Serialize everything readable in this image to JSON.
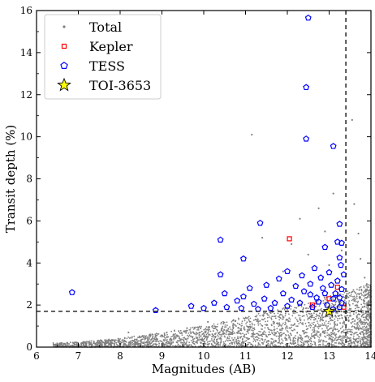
{
  "chart_data": {
    "type": "scatter",
    "title": "",
    "xlabel": "Magnitudes (AB)",
    "ylabel": "Transit depth (%)",
    "xlim": [
      6,
      14
    ],
    "ylim": [
      0,
      16
    ],
    "x_ticks": [
      6,
      7,
      8,
      9,
      10,
      11,
      12,
      13,
      14
    ],
    "y_ticks": [
      0,
      2,
      4,
      6,
      8,
      10,
      12,
      14,
      16
    ],
    "grid": false,
    "legend_position": "top-left",
    "reference_lines": [
      {
        "orientation": "horizontal",
        "value": 1.7,
        "style": "dashed"
      },
      {
        "orientation": "vertical",
        "value": 13.4,
        "style": "dashed"
      }
    ],
    "series": [
      {
        "name": "Total",
        "marker": "dot",
        "color": "#808080",
        "points": [
          [
            8.2,
            0.7
          ],
          [
            8.6,
            0.4
          ],
          [
            9.1,
            0.2
          ],
          [
            9.6,
            0.9
          ],
          [
            10.1,
            1.2
          ],
          [
            10.6,
            0.6
          ],
          [
            11.15,
            10.1
          ],
          [
            11.4,
            5.2
          ],
          [
            12.3,
            6.1
          ],
          [
            12.75,
            6.6
          ],
          [
            12.9,
            5.5
          ],
          [
            13.1,
            7.3
          ],
          [
            13.3,
            4.6
          ],
          [
            13.55,
            10.8
          ],
          [
            13.6,
            6.8
          ],
          [
            13.7,
            5.4
          ],
          [
            13.75,
            4.2
          ],
          [
            13.85,
            3.3
          ],
          [
            13.9,
            3.0
          ],
          [
            13.95,
            2.6
          ],
          [
            13.6,
            2.2
          ],
          [
            13.8,
            1.9
          ],
          [
            12.5,
            4.4
          ],
          [
            11.9,
            3.6
          ],
          [
            12.1,
            4.9
          ],
          [
            13.0,
            3.9
          ],
          [
            7.0,
            0.1
          ],
          [
            6.6,
            0.05
          ],
          [
            7.5,
            0.2
          ],
          [
            8.0,
            0.15
          ]
        ]
      },
      {
        "name": "Kepler",
        "marker": "square",
        "color": "#ff0000",
        "points": [
          [
            12.05,
            5.15
          ],
          [
            13.2,
            2.85
          ],
          [
            13.0,
            2.3
          ],
          [
            12.6,
            2.0
          ],
          [
            13.35,
            1.9
          ]
        ]
      },
      {
        "name": "TESS",
        "marker": "pentagon",
        "color": "#0000ff",
        "points": [
          [
            12.5,
            15.65
          ],
          [
            12.45,
            12.35
          ],
          [
            12.45,
            9.9
          ],
          [
            13.1,
            9.55
          ],
          [
            11.35,
            5.9
          ],
          [
            13.25,
            5.85
          ],
          [
            10.4,
            5.1
          ],
          [
            10.95,
            4.2
          ],
          [
            12.9,
            4.75
          ],
          [
            13.2,
            5.0
          ],
          [
            13.3,
            4.95
          ],
          [
            13.25,
            4.25
          ],
          [
            6.85,
            2.6
          ],
          [
            8.85,
            1.75
          ],
          [
            9.7,
            1.95
          ],
          [
            10.0,
            1.85
          ],
          [
            10.4,
            3.45
          ],
          [
            10.5,
            2.55
          ],
          [
            10.95,
            2.4
          ],
          [
            11.1,
            2.8
          ],
          [
            11.5,
            2.95
          ],
          [
            11.8,
            3.25
          ],
          [
            12.0,
            3.6
          ],
          [
            12.2,
            2.9
          ],
          [
            12.35,
            3.4
          ],
          [
            12.55,
            3.0
          ],
          [
            12.65,
            3.75
          ],
          [
            12.8,
            3.3
          ],
          [
            13.0,
            3.55
          ],
          [
            13.2,
            3.15
          ],
          [
            13.3,
            2.75
          ],
          [
            13.35,
            3.45
          ],
          [
            12.9,
            2.55
          ],
          [
            12.7,
            2.35
          ],
          [
            12.4,
            2.65
          ],
          [
            12.1,
            2.25
          ],
          [
            11.9,
            2.55
          ],
          [
            11.7,
            2.1
          ],
          [
            11.45,
            2.3
          ],
          [
            11.2,
            2.05
          ],
          [
            10.8,
            2.2
          ],
          [
            10.55,
            1.9
          ],
          [
            10.25,
            2.1
          ],
          [
            13.1,
            2.3
          ],
          [
            13.3,
            2.1
          ],
          [
            13.25,
            1.9
          ],
          [
            12.95,
            2.0
          ],
          [
            12.6,
            1.9
          ],
          [
            13.1,
            1.8
          ],
          [
            12.85,
            2.8
          ],
          [
            13.15,
            2.55
          ],
          [
            12.3,
            2.1
          ],
          [
            12.0,
            1.95
          ],
          [
            11.6,
            1.85
          ],
          [
            11.3,
            1.8
          ],
          [
            10.9,
            1.85
          ],
          [
            12.75,
            2.15
          ],
          [
            13.05,
            2.95
          ],
          [
            12.55,
            2.5
          ],
          [
            13.28,
            3.9
          ],
          [
            13.25,
            2.35
          ]
        ]
      },
      {
        "name": "TOI-3653",
        "marker": "star",
        "color": "#ffff00",
        "points": [
          [
            13.0,
            1.7
          ]
        ]
      }
    ]
  }
}
